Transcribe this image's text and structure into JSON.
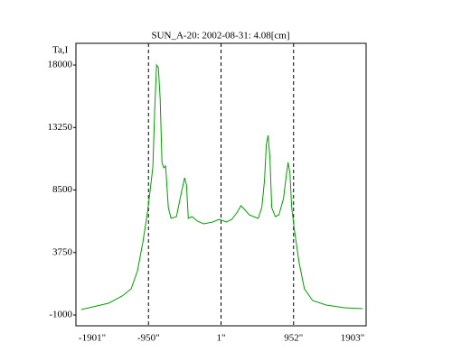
{
  "chart_data": {
    "type": "line",
    "title": "SUN_A-20: 2002-08-31: 4.08[cm]",
    "y_label": "Ta,I",
    "x": [
      -1831,
      -1474,
      -1296,
      -1177,
      -1094,
      -1023,
      -963,
      -927,
      -892,
      -868,
      -844,
      -820,
      -797,
      -773,
      -749,
      -725,
      -690,
      -654,
      -583,
      -523,
      -476,
      -452,
      -428,
      -380,
      -309,
      -226,
      -107,
      -24,
      71,
      143,
      214,
      262,
      309,
      369,
      428,
      488,
      535,
      571,
      595,
      618,
      642,
      666,
      713,
      761,
      820,
      856,
      880,
      904,
      928,
      963,
      1023,
      1094,
      1201,
      1379,
      1617,
      1855
    ],
    "series": [
      {
        "color": "#00a000",
        "values": [
          -588,
          -108,
          441,
          989,
          2361,
          4557,
          6820,
          8535,
          10250,
          14709,
          18002,
          17796,
          15395,
          10593,
          10182,
          10319,
          7163,
          6340,
          6477,
          8192,
          9427,
          8878,
          6340,
          6477,
          6134,
          5929,
          6066,
          6272,
          6066,
          6272,
          6820,
          7300,
          7026,
          6614,
          6477,
          6340,
          7163,
          9221,
          11965,
          12651,
          10936,
          7163,
          6477,
          6614,
          7849,
          9564,
          10593,
          9770,
          7163,
          5448,
          3047,
          989,
          98,
          -245,
          -451,
          -520
        ]
      }
    ],
    "xlim": [
      -1901,
      1903
    ],
    "xticks": [
      {
        "value": -1901,
        "label": "-1901\""
      },
      {
        "value": -950,
        "label": "-950\""
      },
      {
        "value": 1,
        "label": "1\""
      },
      {
        "value": 952,
        "label": "952\""
      },
      {
        "value": 1903,
        "label": "1903\""
      }
    ],
    "ylim": [
      -1820,
      19650
    ],
    "yticks": [
      -1000,
      3750,
      8500,
      13250,
      18000
    ],
    "grid": true
  }
}
